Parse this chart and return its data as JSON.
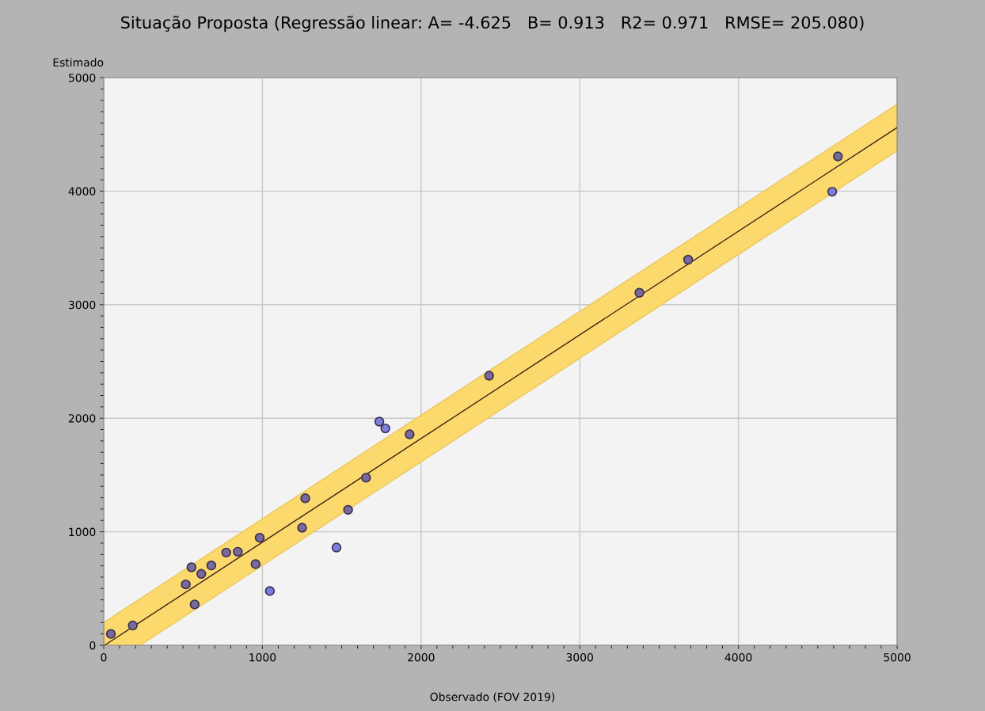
{
  "chart_data": {
    "type": "scatter",
    "title": "Situação Proposta (Regressão linear: A= -4.625   B= 0.913   R2= 0.971   RMSE= 205.080)",
    "xlabel": "Observado (FOV 2019)",
    "ylabel": "Estimado",
    "series": [
      {
        "color": "#7a6a9c",
        "marker": "circle",
        "x": [
          45,
          183,
          517,
          553,
          573,
          615,
          678,
          772,
          845,
          957,
          983,
          1250,
          1270,
          1540,
          1653,
          1928,
          2429,
          3376,
          3683,
          4627
        ],
        "values": [
          100,
          174,
          536,
          687,
          360,
          629,
          703,
          817,
          824,
          715,
          947,
          1035,
          1295,
          1193,
          1476,
          1858,
          2374,
          3105,
          3396,
          4306
        ]
      },
      {
        "color": "#7b7ee0",
        "marker": "circle",
        "x": [
          1047,
          1467,
          1737,
          1775,
          4591
        ],
        "values": [
          478,
          861,
          1970,
          1910,
          3995
        ]
      },
      {
        "type": "line",
        "color": "#3a2a1a",
        "x": [
          5,
          230,
          5000
        ],
        "marker": "none",
        "values": [
          0,
          205,
          4560
        ],
        "lower": [
          0,
          0,
          4355
        ],
        "upper": [
          205,
          411,
          4766
        ]
      }
    ],
    "xlim": [
      0,
      5000
    ],
    "ylim": [
      0,
      5000
    ],
    "xticks": [
      0,
      1000,
      2000,
      3000,
      4000,
      5000
    ],
    "yticks": [
      0,
      1000,
      2000,
      3000,
      4000,
      5000
    ],
    "grid": true
  }
}
